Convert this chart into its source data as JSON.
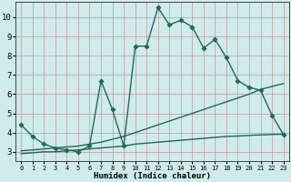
{
  "xlabel": "Humidex (Indice chaleur)",
  "bg_color": "#d0ecea",
  "grid_color": "#c8a0a8",
  "line_color": "#1a6b5a",
  "xlim": [
    -0.5,
    23.5
  ],
  "ylim": [
    2.5,
    10.8
  ],
  "xticks": [
    0,
    1,
    2,
    3,
    4,
    5,
    6,
    7,
    8,
    9,
    10,
    11,
    12,
    13,
    14,
    15,
    16,
    17,
    18,
    19,
    20,
    21,
    22,
    23
  ],
  "yticks": [
    3,
    4,
    5,
    6,
    7,
    8,
    9,
    10
  ],
  "line1_x": [
    0,
    1,
    2,
    3,
    4,
    5,
    6,
    7,
    8,
    9,
    10,
    11,
    12,
    13,
    14,
    15,
    16,
    17,
    18,
    19,
    20,
    21,
    22,
    23
  ],
  "line1_y": [
    4.4,
    3.8,
    3.4,
    3.2,
    3.1,
    3.0,
    3.3,
    6.7,
    5.2,
    3.3,
    8.5,
    8.5,
    10.5,
    9.6,
    9.85,
    9.5,
    8.4,
    8.85,
    7.9,
    6.7,
    6.35,
    6.2,
    4.9,
    3.9
  ],
  "line2_x": [
    0,
    1,
    2,
    3,
    4,
    5,
    6,
    7,
    8,
    9,
    10,
    11,
    12,
    13,
    14,
    15,
    16,
    17,
    18,
    19,
    20,
    21,
    22,
    23
  ],
  "line2_y": [
    3.05,
    3.1,
    3.15,
    3.2,
    3.25,
    3.3,
    3.4,
    3.5,
    3.65,
    3.8,
    4.0,
    4.2,
    4.4,
    4.6,
    4.8,
    5.0,
    5.2,
    5.4,
    5.6,
    5.8,
    6.0,
    6.25,
    6.4,
    6.55
  ],
  "line3_x": [
    0,
    1,
    2,
    3,
    4,
    5,
    6,
    7,
    8,
    9,
    10,
    11,
    12,
    13,
    14,
    15,
    16,
    17,
    18,
    19,
    20,
    21,
    22,
    23
  ],
  "line3_y": [
    2.9,
    2.95,
    3.0,
    3.0,
    3.05,
    3.1,
    3.15,
    3.2,
    3.25,
    3.3,
    3.4,
    3.45,
    3.5,
    3.55,
    3.6,
    3.65,
    3.7,
    3.75,
    3.8,
    3.82,
    3.85,
    3.88,
    3.9,
    3.92
  ],
  "linewidth": 1.0,
  "marker_size": 2.8
}
